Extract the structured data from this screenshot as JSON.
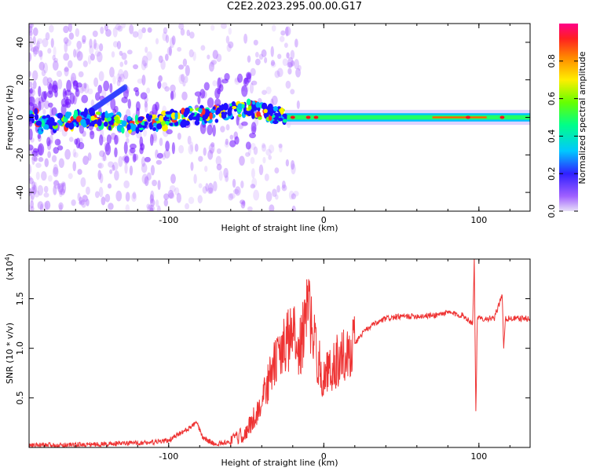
{
  "title": "C2E2.2023.295.00.00.G17",
  "chart_data": [
    {
      "type": "heatmap",
      "xlabel": "Height of straight line (km)",
      "ylabel": "Frequency (Hz)",
      "xlim": [
        -190,
        133
      ],
      "ylim": [
        -50,
        50
      ],
      "xticks": [
        -100,
        0,
        100
      ],
      "yticks": [
        -40,
        -20,
        0,
        20,
        40
      ],
      "colorbar": {
        "label": "Normalized spectral amplitude",
        "range": [
          0,
          1
        ],
        "ticks": [
          "0.0",
          "0.2",
          "0.4",
          "0.6",
          "0.8"
        ]
      },
      "ridge": [
        {
          "x": -185,
          "y": -4
        },
        {
          "x": -165,
          "y": -2
        },
        {
          "x": -150,
          "y": 0
        },
        {
          "x": -130,
          "y": -3
        },
        {
          "x": -110,
          "y": -3
        },
        {
          "x": -90,
          "y": 0
        },
        {
          "x": -70,
          "y": 2
        },
        {
          "x": -50,
          "y": 5
        },
        {
          "x": -40,
          "y": 3
        },
        {
          "x": -25,
          "y": 0
        },
        {
          "x": 0,
          "y": 0
        },
        {
          "x": 50,
          "y": -2
        },
        {
          "x": 100,
          "y": -1
        },
        {
          "x": 133,
          "y": -1
        }
      ]
    },
    {
      "type": "line",
      "xlabel": "Height of straight line (km)",
      "ylabel": "SNR (10 * v/v)",
      "multiplier": "(x10",
      "multiplier_exp": "4",
      "multiplier_close": ")",
      "xlim": [
        -190,
        133
      ],
      "ylim": [
        0,
        1.9
      ],
      "xticks": [
        -100,
        0,
        100
      ],
      "yticks": [
        0.5,
        1.0,
        1.5
      ],
      "color": "#ee3333",
      "series": [
        {
          "values": [
            [
              -190,
              0.02
            ],
            [
              -150,
              0.03
            ],
            [
              -110,
              0.05
            ],
            [
              -100,
              0.07
            ],
            [
              -95,
              0.12
            ],
            [
              -88,
              0.18
            ],
            [
              -82,
              0.25
            ],
            [
              -78,
              0.1
            ],
            [
              -70,
              0.03
            ],
            [
              -60,
              0.06
            ],
            [
              -50,
              0.15
            ],
            [
              -45,
              0.3
            ],
            [
              -40,
              0.45
            ],
            [
              -35,
              0.7
            ],
            [
              -30,
              0.9
            ],
            [
              -20,
              1.15
            ],
            [
              -15,
              1.0
            ],
            [
              -10,
              1.45
            ],
            [
              -5,
              0.95
            ],
            [
              0,
              0.7
            ],
            [
              5,
              0.8
            ],
            [
              10,
              0.9
            ],
            [
              15,
              0.95
            ],
            [
              20,
              1.05
            ],
            [
              25,
              1.15
            ],
            [
              30,
              1.22
            ],
            [
              40,
              1.3
            ],
            [
              50,
              1.32
            ],
            [
              70,
              1.33
            ],
            [
              80,
              1.36
            ],
            [
              90,
              1.33
            ],
            [
              96,
              1.25
            ],
            [
              97,
              1.9
            ],
            [
              98,
              0.35
            ],
            [
              99,
              1.3
            ],
            [
              110,
              1.3
            ],
            [
              115,
              1.55
            ],
            [
              116,
              0.98
            ],
            [
              117,
              1.3
            ],
            [
              133,
              1.3
            ]
          ]
        }
      ]
    }
  ]
}
